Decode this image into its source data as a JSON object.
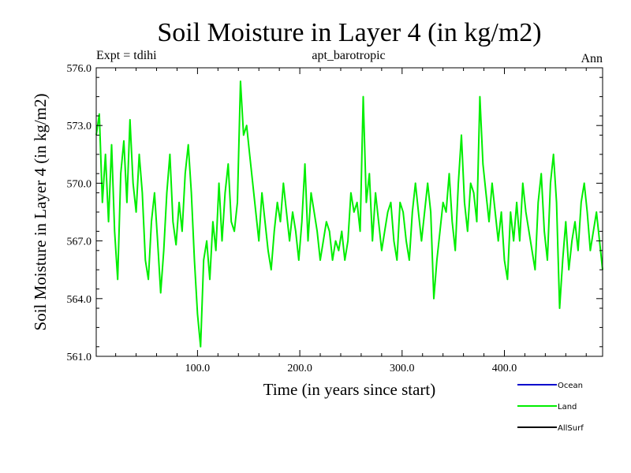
{
  "chart_data": {
    "type": "line",
    "title": "Soil Moisture in Layer 4 (in kg/m2)",
    "subtitle_left": "Expt = tdihi",
    "subtitle_center": "apt_barotropic",
    "subtitle_right": "Ann",
    "xlabel": "Time (in years since start)",
    "ylabel": "Soil Moisture in Layer 4 (in kg/m2)",
    "xlim": [
      1,
      496
    ],
    "ylim": [
      561.0,
      576.0
    ],
    "xticks": [
      100,
      200,
      300,
      400
    ],
    "xtick_labels": [
      "100.0",
      "200.0",
      "300.0",
      "400.0"
    ],
    "yticks": [
      561,
      564,
      567,
      570,
      573,
      576
    ],
    "ytick_labels": [
      "561.0",
      "564.0",
      "567.0",
      "570.0",
      "573.0",
      "576.0"
    ],
    "series": [
      {
        "name": "Ocean",
        "color": "#0000cc",
        "x": [],
        "values": []
      },
      {
        "name": "Land",
        "color": "#00ee00",
        "x": [
          1,
          4,
          7,
          10,
          13,
          16,
          19,
          22,
          25,
          28,
          31,
          34,
          37,
          40,
          43,
          46,
          49,
          52,
          55,
          58,
          61,
          64,
          67,
          70,
          73,
          76,
          79,
          82,
          85,
          88,
          91,
          94,
          97,
          100,
          103,
          106,
          109,
          112,
          115,
          118,
          121,
          124,
          127,
          130,
          133,
          136,
          139,
          142,
          145,
          148,
          151,
          154,
          157,
          160,
          163,
          166,
          169,
          172,
          175,
          178,
          181,
          184,
          187,
          190,
          193,
          196,
          199,
          202,
          205,
          208,
          211,
          214,
          217,
          220,
          223,
          226,
          229,
          232,
          235,
          238,
          241,
          244,
          247,
          250,
          253,
          256,
          259,
          262,
          265,
          268,
          271,
          274,
          277,
          280,
          283,
          286,
          289,
          292,
          295,
          298,
          301,
          304,
          307,
          310,
          313,
          316,
          319,
          322,
          325,
          328,
          331,
          334,
          337,
          340,
          343,
          346,
          349,
          352,
          355,
          358,
          361,
          364,
          367,
          370,
          373,
          376,
          379,
          382,
          385,
          388,
          391,
          394,
          397,
          400,
          403,
          406,
          409,
          412,
          415,
          418,
          421,
          424,
          427,
          430,
          433,
          436,
          439,
          442,
          445,
          448,
          451,
          454,
          457,
          460,
          463,
          466,
          469,
          472,
          475,
          478,
          481,
          484,
          487,
          490,
          493,
          496
        ],
        "values": [
          572.5,
          573.6,
          569.0,
          571.5,
          568.0,
          572.0,
          567.5,
          565.0,
          570.5,
          572.2,
          569.0,
          573.3,
          570.0,
          568.5,
          571.5,
          569.5,
          566.0,
          565.0,
          568.0,
          569.5,
          567.0,
          564.3,
          566.5,
          569.5,
          571.5,
          568.0,
          566.8,
          569.0,
          567.5,
          570.5,
          572.0,
          569.5,
          566.0,
          563.2,
          561.5,
          566.0,
          567.0,
          565.0,
          568.0,
          566.5,
          570.0,
          567.0,
          569.5,
          571.0,
          568.0,
          567.5,
          569.0,
          575.3,
          572.5,
          573.0,
          571.5,
          570.0,
          568.5,
          567.0,
          569.5,
          568.0,
          566.5,
          565.5,
          567.5,
          569.0,
          568.0,
          570.0,
          568.5,
          567.0,
          568.5,
          567.5,
          566.0,
          568.0,
          571.0,
          567.0,
          569.5,
          568.5,
          567.5,
          566.0,
          567.0,
          568.0,
          567.5,
          566.0,
          567.0,
          566.5,
          567.5,
          566.0,
          567.0,
          569.5,
          568.5,
          569.0,
          567.5,
          574.5,
          569.0,
          570.5,
          567.0,
          569.5,
          568.0,
          566.5,
          567.5,
          568.5,
          569.0,
          567.0,
          566.0,
          569.0,
          568.5,
          567.0,
          566.0,
          568.5,
          570.0,
          568.5,
          567.0,
          568.5,
          570.0,
          568.5,
          564.0,
          566.0,
          567.5,
          569.0,
          568.5,
          570.5,
          568.0,
          566.5,
          570.0,
          572.5,
          569.0,
          567.5,
          570.0,
          569.5,
          568.0,
          574.5,
          571.0,
          569.5,
          568.0,
          570.0,
          568.5,
          567.0,
          568.5,
          566.0,
          565.0,
          568.5,
          567.0,
          569.0,
          567.0,
          570.0,
          568.5,
          567.5,
          566.5,
          565.5,
          569.0,
          570.5,
          567.5,
          566.0,
          570.0,
          571.5,
          569.0,
          563.5,
          566.0,
          568.0,
          565.5,
          567.0,
          568.0,
          566.5,
          569.0,
          570.0,
          568.5,
          566.5,
          567.5,
          568.5,
          567.0,
          565.5
        ],
        "values_note": "values read at 3-year intervals from the plotted curve; labels shown in the figure legend"
      },
      {
        "name": "AllSurf",
        "color": "#000000",
        "x": [],
        "values": []
      }
    ],
    "legend": {
      "placement": "bottom-right",
      "entries": [
        "Ocean",
        "Land",
        "AllSurf"
      ]
    }
  }
}
